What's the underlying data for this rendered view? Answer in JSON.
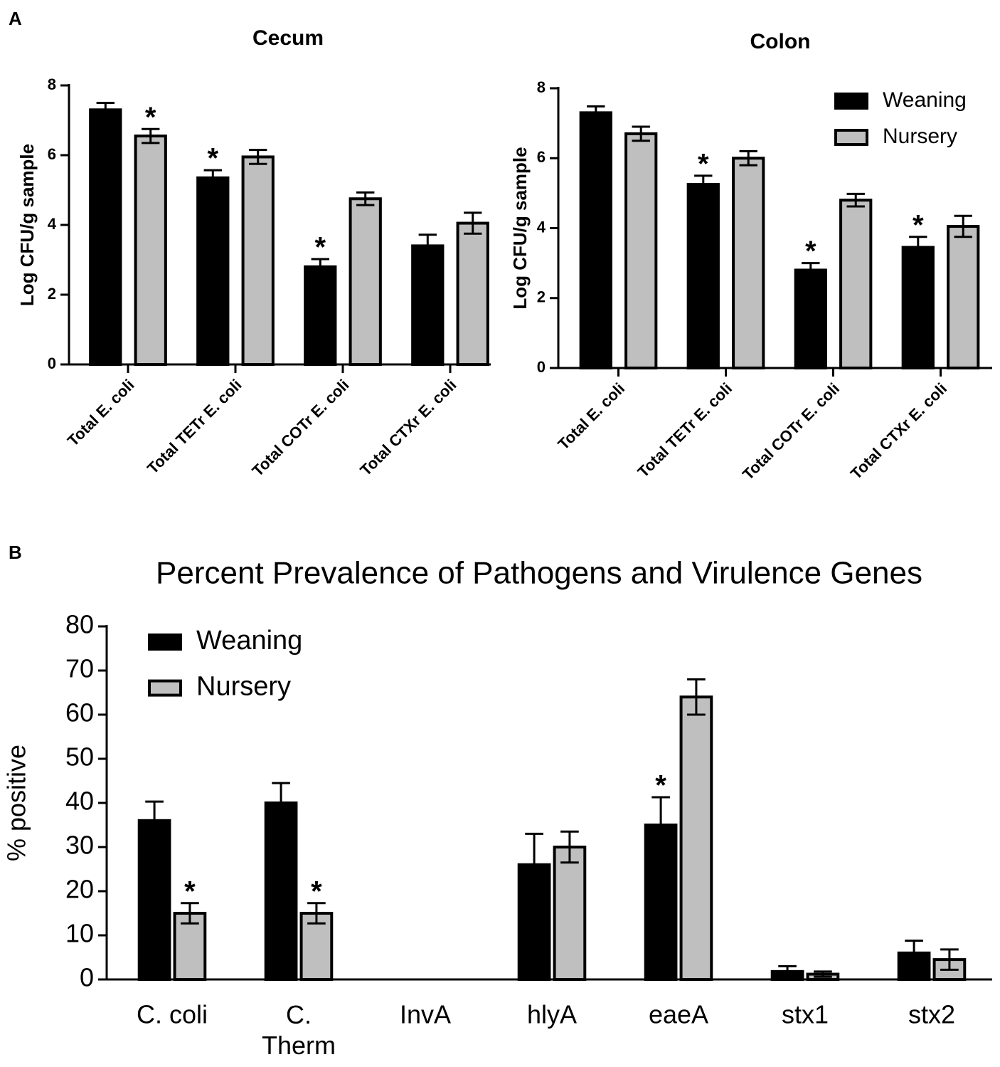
{
  "chart_data": [
    {
      "type": "bar",
      "panel": "A",
      "title": "Cecum",
      "ylabel": "Log CFU/g sample",
      "categories": [
        "Total E. coli",
        "Total TETr E. coli",
        "Total COTr E. coli",
        "Total CTXr E. coli"
      ],
      "series": [
        {
          "color": "#000000",
          "values": [
            7.3,
            5.35,
            2.8,
            3.4
          ],
          "errors": [
            0.2,
            0.22,
            0.22,
            0.32
          ]
        },
        {
          "color": "#bfbfbf",
          "values": [
            6.55,
            5.95,
            4.75,
            4.05
          ],
          "errors": [
            0.2,
            0.2,
            0.18,
            0.3
          ]
        }
      ],
      "annotations": [
        {
          "text": "*",
          "series": 1,
          "category": 0
        },
        {
          "text": "*",
          "series": 0,
          "category": 1
        },
        {
          "text": "*",
          "series": 0,
          "category": 2
        }
      ],
      "ylim": [
        0,
        8
      ],
      "yticks": [
        0,
        2,
        4,
        6,
        8
      ],
      "xtick_marks": true,
      "label_rotation": -45
    },
    {
      "type": "bar",
      "title": "Colon",
      "ylabel": "Log CFU/g sample",
      "categories": [
        "Total E. coli",
        "Total TETr E. coli",
        "Total COTr E. coli",
        "Total CTXr E. coli"
      ],
      "series": [
        {
          "name": "Weaning",
          "color": "#000000",
          "values": [
            7.3,
            5.25,
            2.8,
            3.45
          ],
          "errors": [
            0.18,
            0.25,
            0.2,
            0.3
          ]
        },
        {
          "name": "Nursery",
          "color": "#bfbfbf",
          "values": [
            6.7,
            6.0,
            4.8,
            4.05
          ],
          "errors": [
            0.2,
            0.2,
            0.18,
            0.3
          ]
        }
      ],
      "annotations": [
        {
          "text": "*",
          "series": 0,
          "category": 1
        },
        {
          "text": "*",
          "series": 0,
          "category": 2
        },
        {
          "text": "*",
          "series": 0,
          "category": 3
        }
      ],
      "ylim": [
        0,
        8
      ],
      "yticks": [
        0,
        2,
        4,
        6,
        8
      ],
      "xtick_marks": true,
      "label_rotation": -45,
      "legend": "upper right"
    },
    {
      "type": "bar",
      "panel": "B",
      "title": "Percent Prevalence of Pathogens and Virulence Genes",
      "ylabel": "% positive",
      "categories": [
        "C. coli",
        "C. Therm",
        "InvA",
        "hlyA",
        "eaeA",
        "stx1",
        "stx2"
      ],
      "series": [
        {
          "name": "Weaning",
          "color": "#000000",
          "values": [
            36,
            40,
            0,
            26,
            35,
            1.8,
            6
          ],
          "errors": [
            4.3,
            4.5,
            0,
            7,
            6.3,
            1.2,
            2.8
          ]
        },
        {
          "name": "Nursery",
          "color": "#bfbfbf",
          "values": [
            15,
            15,
            0,
            30,
            64,
            1.2,
            4.5
          ],
          "errors": [
            2.3,
            2.3,
            0,
            3.5,
            4,
            0.6,
            2.3
          ]
        }
      ],
      "annotations": [
        {
          "text": "*",
          "series": 1,
          "category": 0
        },
        {
          "text": "*",
          "series": 1,
          "category": 1
        },
        {
          "text": "*",
          "series": 0,
          "category": 4
        }
      ],
      "ylim": [
        0,
        80
      ],
      "yticks": [
        0,
        10,
        20,
        30,
        40,
        50,
        60,
        70,
        80
      ],
      "xtick_marks": false,
      "label_rotation": 0,
      "legend": "upper left"
    }
  ]
}
